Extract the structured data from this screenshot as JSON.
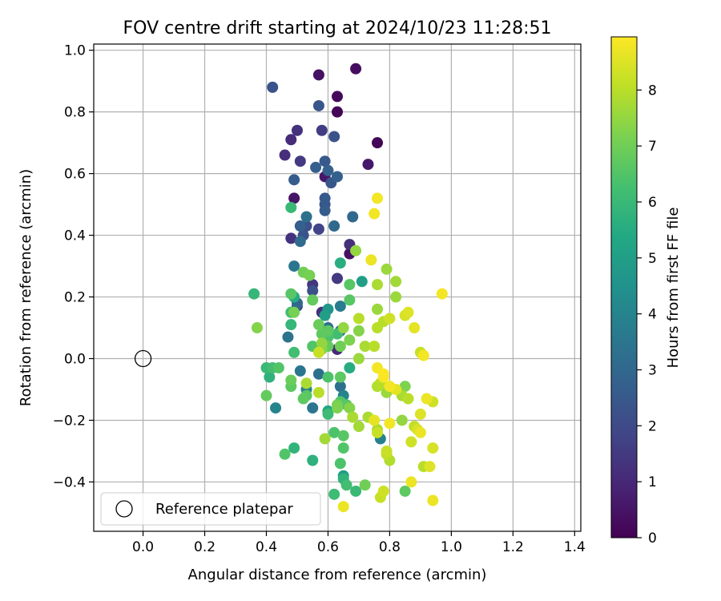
{
  "chart_data": {
    "type": "scatter",
    "title": "FOV centre drift starting at 2024/10/23 11:28:51",
    "xlabel": "Angular distance from reference (arcmin)",
    "ylabel": "Rotation from reference (arcmin)",
    "xlim": [
      -0.16,
      1.42
    ],
    "ylim": [
      -0.56,
      1.02
    ],
    "xticks": [
      0.0,
      0.2,
      0.4,
      0.6,
      0.8,
      1.0,
      1.2,
      1.4
    ],
    "xtick_labels": [
      "0.0",
      "0.2",
      "0.4",
      "0.6",
      "0.8",
      "1.0",
      "1.2",
      "1.4"
    ],
    "yticks": [
      -0.4,
      -0.2,
      0.0,
      0.2,
      0.4,
      0.6,
      0.8,
      1.0
    ],
    "ytick_labels": [
      "−0.4",
      "−0.2",
      "0.0",
      "0.2",
      "0.4",
      "0.6",
      "0.8",
      "1.0"
    ],
    "grid": true,
    "legend": {
      "position": "lower-left",
      "entries": [
        "Reference platepar"
      ]
    },
    "reference_point": {
      "x": 0.0,
      "y": 0.0,
      "name": "Reference platepar"
    },
    "colorbar": {
      "label": "Hours from first FF file",
      "range": [
        0,
        8.95
      ],
      "ticks": [
        0,
        1,
        2,
        3,
        4,
        5,
        6,
        7,
        8
      ],
      "tick_labels": [
        "0",
        "1",
        "2",
        "3",
        "4",
        "5",
        "6",
        "7",
        "8"
      ],
      "colormap": "viridis"
    },
    "points": [
      {
        "x": 0.57,
        "y": 0.92,
        "h": 0.4
      },
      {
        "x": 0.69,
        "y": 0.94,
        "h": 0.3
      },
      {
        "x": 0.42,
        "y": 0.88,
        "h": 2.3
      },
      {
        "x": 0.63,
        "y": 0.85,
        "h": 0.2
      },
      {
        "x": 0.57,
        "y": 0.82,
        "h": 2.4
      },
      {
        "x": 0.63,
        "y": 0.8,
        "h": 0.1
      },
      {
        "x": 0.5,
        "y": 0.74,
        "h": 1.3
      },
      {
        "x": 0.58,
        "y": 0.74,
        "h": 1.6
      },
      {
        "x": 0.62,
        "y": 0.72,
        "h": 2.3
      },
      {
        "x": 0.48,
        "y": 0.71,
        "h": 1.1
      },
      {
        "x": 0.76,
        "y": 0.7,
        "h": 0.1
      },
      {
        "x": 0.46,
        "y": 0.66,
        "h": 1.2
      },
      {
        "x": 0.51,
        "y": 0.64,
        "h": 1.5
      },
      {
        "x": 0.59,
        "y": 0.64,
        "h": 2.5
      },
      {
        "x": 0.73,
        "y": 0.63,
        "h": 0.6
      },
      {
        "x": 0.56,
        "y": 0.62,
        "h": 2.7
      },
      {
        "x": 0.6,
        "y": 0.61,
        "h": 2.8
      },
      {
        "x": 0.63,
        "y": 0.59,
        "h": 2.7
      },
      {
        "x": 0.59,
        "y": 0.59,
        "h": 0.6
      },
      {
        "x": 0.49,
        "y": 0.58,
        "h": 2.6
      },
      {
        "x": 0.61,
        "y": 0.57,
        "h": 2.4
      },
      {
        "x": 0.59,
        "y": 0.52,
        "h": 2.5
      },
      {
        "x": 0.49,
        "y": 0.52,
        "h": 0.5
      },
      {
        "x": 0.76,
        "y": 0.52,
        "h": 8.8
      },
      {
        "x": 0.59,
        "y": 0.5,
        "h": 2.4
      },
      {
        "x": 0.48,
        "y": 0.49,
        "h": 6.0
      },
      {
        "x": 0.59,
        "y": 0.48,
        "h": 2.6
      },
      {
        "x": 0.75,
        "y": 0.47,
        "h": 8.8
      },
      {
        "x": 0.53,
        "y": 0.46,
        "h": 3.3
      },
      {
        "x": 0.68,
        "y": 0.46,
        "h": 3.0
      },
      {
        "x": 0.62,
        "y": 0.43,
        "h": 3.0
      },
      {
        "x": 0.51,
        "y": 0.43,
        "h": 2.7
      },
      {
        "x": 0.53,
        "y": 0.43,
        "h": 2.2
      },
      {
        "x": 0.57,
        "y": 0.42,
        "h": 1.8
      },
      {
        "x": 0.52,
        "y": 0.4,
        "h": 2.3
      },
      {
        "x": 0.48,
        "y": 0.39,
        "h": 1.3
      },
      {
        "x": 0.51,
        "y": 0.38,
        "h": 3.1
      },
      {
        "x": 0.67,
        "y": 0.37,
        "h": 1.2
      },
      {
        "x": 0.69,
        "y": 0.35,
        "h": 7.5
      },
      {
        "x": 0.67,
        "y": 0.34,
        "h": 0.4
      },
      {
        "x": 0.74,
        "y": 0.32,
        "h": 8.7
      },
      {
        "x": 0.64,
        "y": 0.31,
        "h": 5.6
      },
      {
        "x": 0.49,
        "y": 0.3,
        "h": 3.5
      },
      {
        "x": 0.79,
        "y": 0.29,
        "h": 7.6
      },
      {
        "x": 0.52,
        "y": 0.28,
        "h": 7.0
      },
      {
        "x": 0.54,
        "y": 0.27,
        "h": 7.1
      },
      {
        "x": 0.63,
        "y": 0.26,
        "h": 1.5
      },
      {
        "x": 0.71,
        "y": 0.25,
        "h": 5.0
      },
      {
        "x": 0.82,
        "y": 0.25,
        "h": 7.7
      },
      {
        "x": 0.67,
        "y": 0.24,
        "h": 6.6
      },
      {
        "x": 0.55,
        "y": 0.24,
        "h": 1.4
      },
      {
        "x": 0.76,
        "y": 0.24,
        "h": 7.8
      },
      {
        "x": 0.55,
        "y": 0.22,
        "h": 2.2
      },
      {
        "x": 0.36,
        "y": 0.21,
        "h": 5.9
      },
      {
        "x": 0.97,
        "y": 0.21,
        "h": 8.8
      },
      {
        "x": 0.48,
        "y": 0.21,
        "h": 6.6
      },
      {
        "x": 0.49,
        "y": 0.2,
        "h": 5.5
      },
      {
        "x": 0.82,
        "y": 0.2,
        "h": 7.6
      },
      {
        "x": 0.55,
        "y": 0.19,
        "h": 6.8
      },
      {
        "x": 0.67,
        "y": 0.19,
        "h": 6.6
      },
      {
        "x": 0.5,
        "y": 0.18,
        "h": 3.0
      },
      {
        "x": 0.5,
        "y": 0.17,
        "h": 2.2
      },
      {
        "x": 0.64,
        "y": 0.17,
        "h": 3.7
      },
      {
        "x": 0.76,
        "y": 0.16,
        "h": 7.6
      },
      {
        "x": 0.6,
        "y": 0.16,
        "h": 4.7
      },
      {
        "x": 0.49,
        "y": 0.15,
        "h": 7.1
      },
      {
        "x": 0.48,
        "y": 0.15,
        "h": 6.2
      },
      {
        "x": 0.58,
        "y": 0.15,
        "h": 1.2
      },
      {
        "x": 0.86,
        "y": 0.15,
        "h": 8.5
      },
      {
        "x": 0.59,
        "y": 0.14,
        "h": 5.0
      },
      {
        "x": 0.85,
        "y": 0.14,
        "h": 8.4
      },
      {
        "x": 0.7,
        "y": 0.13,
        "h": 8.0
      },
      {
        "x": 0.8,
        "y": 0.13,
        "h": 8.3
      },
      {
        "x": 0.78,
        "y": 0.12,
        "h": 8.0
      },
      {
        "x": 0.48,
        "y": 0.11,
        "h": 5.9
      },
      {
        "x": 0.57,
        "y": 0.11,
        "h": 6.9
      },
      {
        "x": 0.88,
        "y": 0.1,
        "h": 8.6
      },
      {
        "x": 0.37,
        "y": 0.1,
        "h": 7.3
      },
      {
        "x": 0.65,
        "y": 0.1,
        "h": 7.5
      },
      {
        "x": 0.6,
        "y": 0.1,
        "h": 3.3
      },
      {
        "x": 0.76,
        "y": 0.1,
        "h": 8.0
      },
      {
        "x": 0.6,
        "y": 0.09,
        "h": 6.7
      },
      {
        "x": 0.64,
        "y": 0.09,
        "h": 3.3
      },
      {
        "x": 0.7,
        "y": 0.09,
        "h": 7.3
      },
      {
        "x": 0.58,
        "y": 0.08,
        "h": 6.7
      },
      {
        "x": 0.63,
        "y": 0.08,
        "h": 6.2
      },
      {
        "x": 0.6,
        "y": 0.07,
        "h": 6.4
      },
      {
        "x": 0.47,
        "y": 0.07,
        "h": 3.4
      },
      {
        "x": 0.67,
        "y": 0.06,
        "h": 7.2
      },
      {
        "x": 0.58,
        "y": 0.05,
        "h": 7.5
      },
      {
        "x": 0.55,
        "y": 0.04,
        "h": 6.5
      },
      {
        "x": 0.6,
        "y": 0.04,
        "h": 6.8
      },
      {
        "x": 0.64,
        "y": 0.04,
        "h": 7.0
      },
      {
        "x": 0.72,
        "y": 0.04,
        "h": 7.8
      },
      {
        "x": 0.75,
        "y": 0.04,
        "h": 8.0
      },
      {
        "x": 0.63,
        "y": 0.03,
        "h": 1.0
      },
      {
        "x": 0.58,
        "y": 0.03,
        "h": 7.3
      },
      {
        "x": 0.57,
        "y": 0.02,
        "h": 8.2
      },
      {
        "x": 0.49,
        "y": 0.02,
        "h": 6.2
      },
      {
        "x": 0.9,
        "y": 0.02,
        "h": 8.2
      },
      {
        "x": 0.91,
        "y": 0.01,
        "h": 8.8
      },
      {
        "x": 0.7,
        "y": 0.0,
        "h": 7.6
      },
      {
        "x": 0.4,
        "y": -0.03,
        "h": 6.0
      },
      {
        "x": 0.42,
        "y": -0.03,
        "h": 6.2
      },
      {
        "x": 0.44,
        "y": -0.03,
        "h": 6.5
      },
      {
        "x": 0.67,
        "y": -0.03,
        "h": 5.5
      },
      {
        "x": 0.76,
        "y": -0.03,
        "h": 8.8
      },
      {
        "x": 0.51,
        "y": -0.04,
        "h": 3.5
      },
      {
        "x": 0.78,
        "y": -0.05,
        "h": 8.9
      },
      {
        "x": 0.57,
        "y": -0.05,
        "h": 3.3
      },
      {
        "x": 0.6,
        "y": -0.06,
        "h": 6.4
      },
      {
        "x": 0.64,
        "y": -0.06,
        "h": 6.7
      },
      {
        "x": 0.41,
        "y": -0.06,
        "h": 5.7
      },
      {
        "x": 0.78,
        "y": -0.06,
        "h": 8.9
      },
      {
        "x": 0.48,
        "y": -0.07,
        "h": 6.9
      },
      {
        "x": 0.53,
        "y": -0.08,
        "h": 7.8
      },
      {
        "x": 0.77,
        "y": -0.08,
        "h": 8.0
      },
      {
        "x": 0.76,
        "y": -0.09,
        "h": 7.9
      },
      {
        "x": 0.48,
        "y": -0.09,
        "h": 6.7
      },
      {
        "x": 0.64,
        "y": -0.09,
        "h": 3.3
      },
      {
        "x": 0.8,
        "y": -0.09,
        "h": 8.8
      },
      {
        "x": 0.85,
        "y": -0.09,
        "h": 7.2
      },
      {
        "x": 0.53,
        "y": -0.1,
        "h": 3.9
      },
      {
        "x": 0.82,
        "y": -0.1,
        "h": 8.6
      },
      {
        "x": 0.57,
        "y": -0.11,
        "h": 8.0
      },
      {
        "x": 0.4,
        "y": -0.12,
        "h": 6.8
      },
      {
        "x": 0.79,
        "y": -0.11,
        "h": 7.6
      },
      {
        "x": 0.65,
        "y": -0.12,
        "h": 4.0
      },
      {
        "x": 0.53,
        "y": -0.12,
        "h": 6.6
      },
      {
        "x": 0.84,
        "y": -0.12,
        "h": 7.8
      },
      {
        "x": 0.52,
        "y": -0.13,
        "h": 6.7
      },
      {
        "x": 0.86,
        "y": -0.13,
        "h": 8.0
      },
      {
        "x": 0.92,
        "y": -0.13,
        "h": 8.7
      },
      {
        "x": 0.94,
        "y": -0.14,
        "h": 8.3
      },
      {
        "x": 0.64,
        "y": -0.14,
        "h": 6.5
      },
      {
        "x": 0.63,
        "y": -0.15,
        "h": 7.1
      },
      {
        "x": 0.66,
        "y": -0.15,
        "h": 6.6
      },
      {
        "x": 0.63,
        "y": -0.16,
        "h": 7.2
      },
      {
        "x": 0.55,
        "y": -0.16,
        "h": 3.5
      },
      {
        "x": 0.43,
        "y": -0.16,
        "h": 4.0
      },
      {
        "x": 0.6,
        "y": -0.17,
        "h": 5.2
      },
      {
        "x": 0.67,
        "y": -0.16,
        "h": 7.3
      },
      {
        "x": 0.6,
        "y": -0.18,
        "h": 6.1
      },
      {
        "x": 0.9,
        "y": -0.18,
        "h": 8.5
      },
      {
        "x": 0.73,
        "y": -0.19,
        "h": 7.8
      },
      {
        "x": 0.68,
        "y": -0.19,
        "h": 7.8
      },
      {
        "x": 0.75,
        "y": -0.2,
        "h": 8.6
      },
      {
        "x": 0.84,
        "y": -0.2,
        "h": 7.5
      },
      {
        "x": 0.8,
        "y": -0.21,
        "h": 8.8
      },
      {
        "x": 0.7,
        "y": -0.22,
        "h": 7.7
      },
      {
        "x": 0.88,
        "y": -0.22,
        "h": 8.1
      },
      {
        "x": 0.89,
        "y": -0.23,
        "h": 8.4
      },
      {
        "x": 0.76,
        "y": -0.23,
        "h": 7.8
      },
      {
        "x": 0.9,
        "y": -0.24,
        "h": 8.7
      },
      {
        "x": 0.62,
        "y": -0.24,
        "h": 6.4
      },
      {
        "x": 0.76,
        "y": -0.24,
        "h": 8.2
      },
      {
        "x": 0.65,
        "y": -0.25,
        "h": 6.6
      },
      {
        "x": 0.59,
        "y": -0.26,
        "h": 7.7
      },
      {
        "x": 0.77,
        "y": -0.26,
        "h": 3.9
      },
      {
        "x": 0.87,
        "y": -0.27,
        "h": 8.3
      },
      {
        "x": 0.49,
        "y": -0.29,
        "h": 5.8
      },
      {
        "x": 0.65,
        "y": -0.29,
        "h": 6.5
      },
      {
        "x": 0.94,
        "y": -0.29,
        "h": 8.4
      },
      {
        "x": 0.79,
        "y": -0.3,
        "h": 8.2
      },
      {
        "x": 0.46,
        "y": -0.31,
        "h": 6.5
      },
      {
        "x": 0.79,
        "y": -0.31,
        "h": 8.1
      },
      {
        "x": 0.55,
        "y": -0.33,
        "h": 5.7
      },
      {
        "x": 0.8,
        "y": -0.33,
        "h": 7.9
      },
      {
        "x": 0.64,
        "y": -0.34,
        "h": 6.4
      },
      {
        "x": 0.91,
        "y": -0.35,
        "h": 8.0
      },
      {
        "x": 0.93,
        "y": -0.35,
        "h": 8.5
      },
      {
        "x": 0.65,
        "y": -0.38,
        "h": 5.0
      },
      {
        "x": 0.65,
        "y": -0.39,
        "h": 5.8
      },
      {
        "x": 0.66,
        "y": -0.41,
        "h": 6.2
      },
      {
        "x": 0.72,
        "y": -0.41,
        "h": 7.0
      },
      {
        "x": 0.87,
        "y": -0.4,
        "h": 8.7
      },
      {
        "x": 0.69,
        "y": -0.43,
        "h": 6.0
      },
      {
        "x": 0.78,
        "y": -0.43,
        "h": 8.3
      },
      {
        "x": 0.85,
        "y": -0.43,
        "h": 6.7
      },
      {
        "x": 0.62,
        "y": -0.44,
        "h": 6.1
      },
      {
        "x": 0.77,
        "y": -0.45,
        "h": 8.2
      },
      {
        "x": 0.94,
        "y": -0.46,
        "h": 8.7
      },
      {
        "x": 0.65,
        "y": -0.48,
        "h": 8.7
      }
    ]
  }
}
